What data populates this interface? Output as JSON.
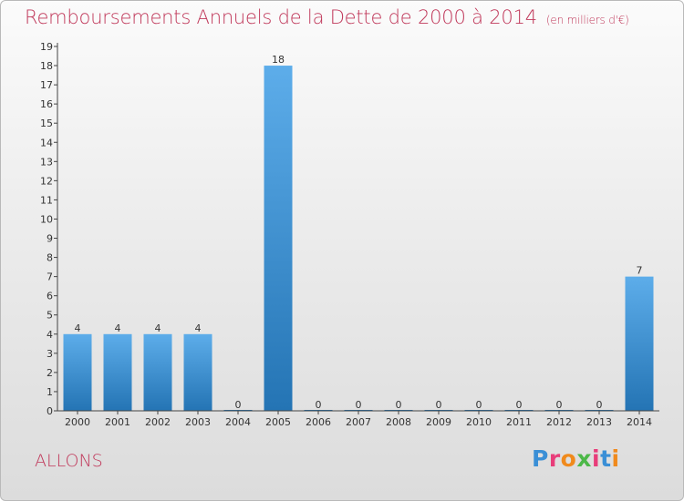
{
  "title": "Remboursements Annuels de la Dette de 2000 à 2014",
  "subtitle": "(en milliers d'€)",
  "commune": "ALLONS",
  "logo": {
    "text": "Proxiti",
    "colors": [
      "#3a8fd6",
      "#e83d7a",
      "#f08a1c",
      "#4cb848",
      "#e83d7a",
      "#3a8fd6",
      "#f08a1c"
    ]
  },
  "chart_data": {
    "type": "bar",
    "title": "Remboursements Annuels de la Dette de 2000 à 2014",
    "xlabel": "",
    "ylabel": "",
    "categories": [
      "2000",
      "2001",
      "2002",
      "2003",
      "2004",
      "2005",
      "2006",
      "2007",
      "2008",
      "2009",
      "2010",
      "2011",
      "2012",
      "2013",
      "2014"
    ],
    "values": [
      4,
      4,
      4,
      4,
      0,
      18,
      0,
      0,
      0,
      0,
      0,
      0,
      0,
      0,
      7
    ],
    "data_labels": [
      "4",
      "4",
      "4",
      "4",
      "0",
      "18",
      "0",
      "0",
      "0",
      "0",
      "0",
      "0",
      "0",
      "0",
      "7"
    ],
    "ylim": [
      0,
      19
    ],
    "yticks": [
      0,
      1,
      2,
      3,
      4,
      5,
      6,
      7,
      8,
      9,
      10,
      11,
      12,
      13,
      14,
      15,
      16,
      17,
      18,
      19
    ],
    "grid": false,
    "legend": "none",
    "bar_color_light": "#5dadea",
    "bar_color_dark": "#2474b4",
    "axis_color": "#444444"
  }
}
